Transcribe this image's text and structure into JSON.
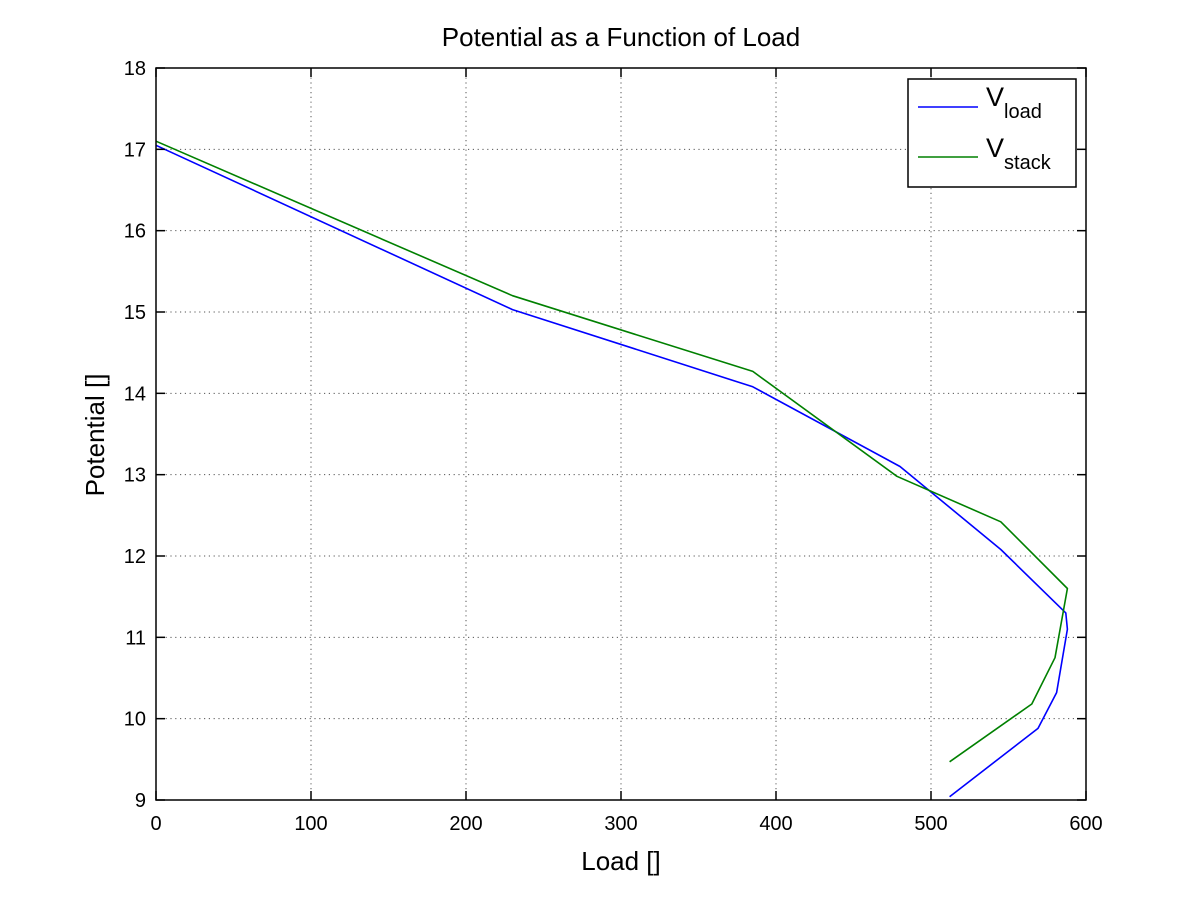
{
  "chart_data": {
    "type": "line",
    "title": "Potential as a Function of Load",
    "xlabel": "Load []",
    "ylabel": "Potential []",
    "xlim": [
      0,
      600
    ],
    "ylim": [
      9,
      18
    ],
    "xticks": [
      0,
      100,
      200,
      300,
      400,
      500,
      600
    ],
    "yticks": [
      9,
      10,
      11,
      12,
      13,
      14,
      15,
      16,
      17,
      18
    ],
    "xtick_labels": [
      "0",
      "100",
      "200",
      "300",
      "400",
      "500",
      "600"
    ],
    "ytick_labels": [
      "9",
      "10",
      "11",
      "12",
      "13",
      "14",
      "15",
      "16",
      "17",
      "18"
    ],
    "grid": true,
    "legend_position": "top-right",
    "series": [
      {
        "name": "V_load",
        "legend_main": "V",
        "legend_sub": "load",
        "color": "#0000ff",
        "x": [
          0,
          230,
          385,
          480,
          545,
          587,
          588,
          581,
          569,
          512
        ],
        "y": [
          17.05,
          15.03,
          14.08,
          13.1,
          12.08,
          11.3,
          11.1,
          10.32,
          9.88,
          9.04
        ]
      },
      {
        "name": "V_stack",
        "legend_main": "V",
        "legend_sub": "stack",
        "color": "#008000",
        "x": [
          0,
          230,
          385,
          478,
          545,
          588,
          580,
          565,
          512
        ],
        "y": [
          17.1,
          15.2,
          14.27,
          12.98,
          12.42,
          11.6,
          10.75,
          10.18,
          9.47
        ]
      }
    ]
  }
}
